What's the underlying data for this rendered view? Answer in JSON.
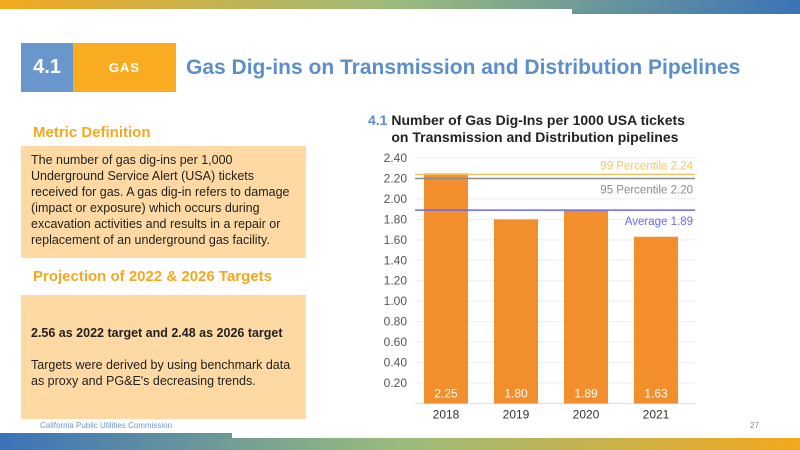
{
  "header": {
    "section_number": "4.1",
    "category": "GAS",
    "title": "Gas Dig-ins on Transmission and Distribution Pipelines"
  },
  "metric": {
    "heading": "Metric Definition",
    "text": "The number of gas dig-ins per 1,000 Underground Service Alert (USA) tickets received for gas. A gas dig-in refers to damage (impact or exposure) which occurs during excavation activities and results in a repair or replacement of an underground gas facility."
  },
  "projection": {
    "heading": "Projection of 2022 & 2026 Targets",
    "targets": "2.56 as 2022 target and 2.48 as 2026 target",
    "note": "Targets were derived by using benchmark data as proxy and PG&E's decreasing trends."
  },
  "footer": {
    "org": "California Public Utilities Commission",
    "page": "27"
  },
  "chart_data": {
    "type": "bar",
    "title_prefix": "4.1",
    "title": "Number of Gas Dig-Ins per 1000 USA tickets on Transmission and Distribution pipelines",
    "categories": [
      "2018",
      "2019",
      "2020",
      "2021"
    ],
    "values": [
      2.25,
      1.8,
      1.89,
      1.63
    ],
    "data_labels": [
      "2.25",
      "1.80",
      "1.89",
      "1.63"
    ],
    "ylim": [
      0,
      2.4
    ],
    "yticks": [
      "0.20",
      "0.40",
      "0.60",
      "0.80",
      "1.00",
      "1.20",
      "1.40",
      "1.60",
      "1.80",
      "2.00",
      "2.20",
      "2.40"
    ],
    "bar_color": "#f28e2b",
    "reference_lines": [
      {
        "label": "99 Percentile 2.24",
        "value": 2.24,
        "color": "#f5c55a"
      },
      {
        "label": "95 Percentile 2.20",
        "value": 2.2,
        "color": "#8c8c8c"
      },
      {
        "label": "Average 1.89",
        "value": 1.89,
        "color": "#6a6af0"
      }
    ],
    "grid": true
  }
}
